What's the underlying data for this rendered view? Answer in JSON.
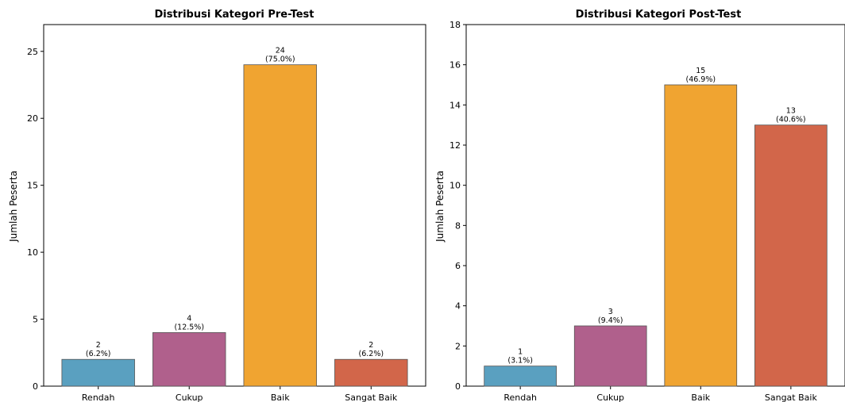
{
  "chart_data": [
    {
      "type": "bar",
      "title": "Distribusi Kategori Pre-Test",
      "xlabel": "",
      "ylabel": "Jumlah Peserta",
      "categories": [
        "Rendah",
        "Cukup",
        "Baik",
        "Sangat Baik"
      ],
      "values": [
        2,
        4,
        24,
        2
      ],
      "value_labels": [
        "2",
        "4",
        "24",
        "2"
      ],
      "percent_labels": [
        "(6.2%)",
        "(12.5%)",
        "(75.0%)",
        "(6.2%)"
      ],
      "colors": [
        "#5aa0c0",
        "#b0608c",
        "#f0a431",
        "#d2664a"
      ],
      "ylim": [
        0,
        27
      ],
      "yticks": [
        0,
        5,
        10,
        15,
        20,
        25
      ],
      "grid": false
    },
    {
      "type": "bar",
      "title": "Distribusi Kategori Post-Test",
      "xlabel": "",
      "ylabel": "Jumlah Peserta",
      "categories": [
        "Rendah",
        "Cukup",
        "Baik",
        "Sangat Baik"
      ],
      "values": [
        1,
        3,
        15,
        13
      ],
      "value_labels": [
        "1",
        "3",
        "15",
        "13"
      ],
      "percent_labels": [
        "(3.1%)",
        "(9.4%)",
        "(46.9%)",
        "(40.6%)"
      ],
      "colors": [
        "#5aa0c0",
        "#b0608c",
        "#f0a431",
        "#d2664a"
      ],
      "ylim": [
        0,
        18
      ],
      "yticks": [
        0,
        2,
        4,
        6,
        8,
        10,
        12,
        14,
        16,
        18
      ],
      "grid": false
    }
  ]
}
